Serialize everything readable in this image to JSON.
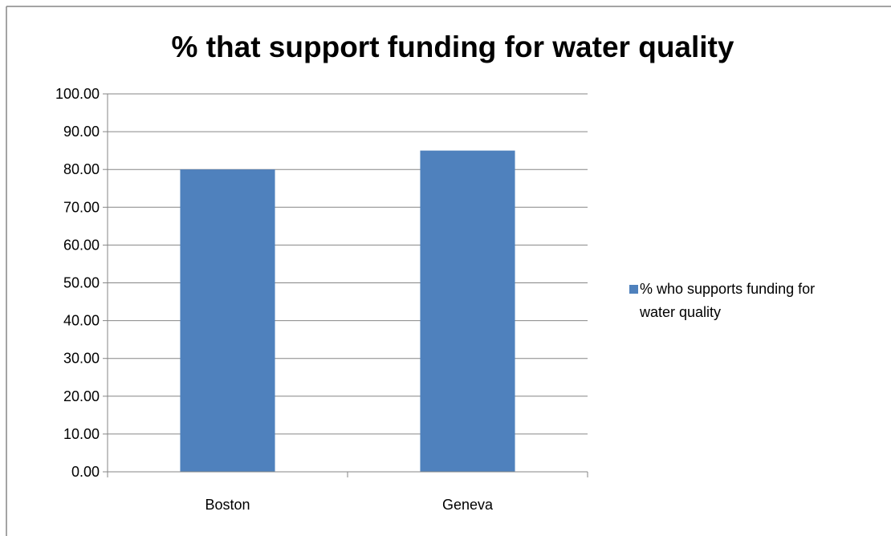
{
  "chart_data": {
    "type": "bar",
    "title": "% that support funding for water quality",
    "xlabel": "",
    "ylabel": "",
    "categories": [
      "Boston",
      "Geneva"
    ],
    "series": [
      {
        "name": "% who supports funding for water quality",
        "name_lines": [
          "% who supports funding for",
          "water quality"
        ],
        "values": [
          80,
          85
        ],
        "color": "#4f81bd"
      }
    ],
    "ylim": [
      0,
      100
    ],
    "yticks": [
      0,
      10,
      20,
      30,
      40,
      50,
      60,
      70,
      80,
      90,
      100
    ],
    "ytick_labels": [
      "0.00",
      "10.00",
      "20.00",
      "30.00",
      "40.00",
      "50.00",
      "60.00",
      "70.00",
      "80.00",
      "90.00",
      "100.00"
    ],
    "grid": true,
    "legend_position": "right"
  },
  "colors": {
    "bar": "#4f81bd",
    "gridline": "#868686",
    "axis": "#868686",
    "border": "#868686"
  }
}
